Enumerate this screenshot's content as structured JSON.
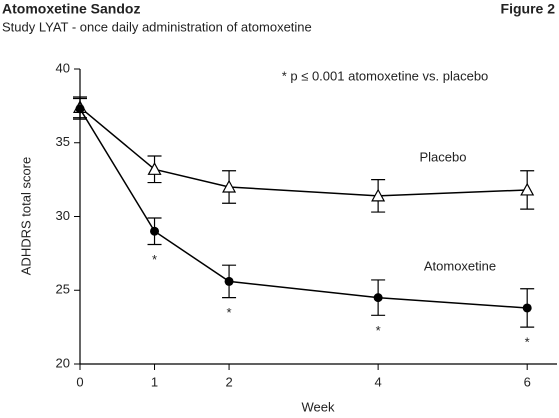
{
  "header": {
    "title": "Atomoxetine Sandoz",
    "subtitle": "Study LYAT - once daily administration of atomoxetine",
    "figure": "Figure 2"
  },
  "chart_data": {
    "type": "line",
    "annotation": "* p ≤ 0.001 atomoxetine vs. placebo",
    "xlabel": "Week",
    "ylabel": "ADHDRS total score",
    "x": [
      0,
      1,
      2,
      4,
      6
    ],
    "xlim": [
      0,
      6.4
    ],
    "xticks": [
      0,
      1,
      2,
      4,
      6
    ],
    "ylim": [
      20,
      40
    ],
    "yticks": [
      20,
      25,
      30,
      35,
      40
    ],
    "series": [
      {
        "name": "Placebo",
        "color": "#000000",
        "marker": "triangle-open",
        "values": [
          37.4,
          33.2,
          32.0,
          31.4,
          31.8
        ],
        "errors": [
          0.7,
          0.9,
          1.1,
          1.1,
          1.3
        ]
      },
      {
        "name": "Atomoxetine",
        "color": "#000000",
        "marker": "circle",
        "values": [
          37.3,
          29.0,
          25.6,
          24.5,
          23.8
        ],
        "errors": [
          0.7,
          0.9,
          1.1,
          1.2,
          1.3
        ],
        "significance": [
          null,
          "*",
          "*",
          "*",
          "*"
        ]
      }
    ]
  }
}
